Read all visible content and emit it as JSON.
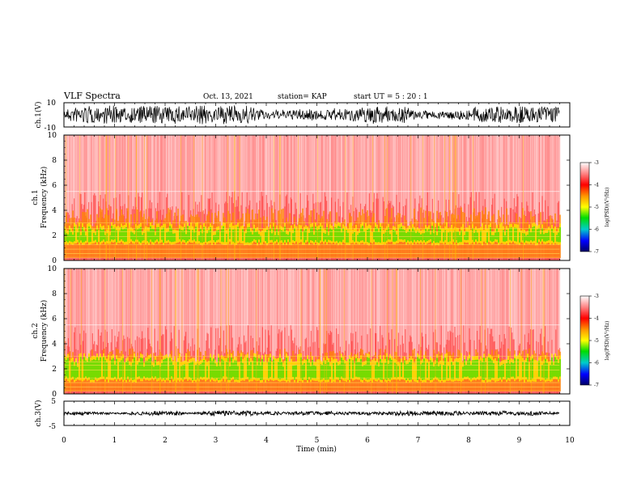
{
  "header": {
    "title": "VLF Spectra",
    "date": "Oct. 13, 2021",
    "station": "station= KAP",
    "start": "start  UT =  5 : 20 : 1"
  },
  "chart_data": [
    {
      "type": "line",
      "panel": "ch1-waveform",
      "ylabel": "ch.1(V)",
      "ylim": [
        -10,
        10
      ],
      "ytick_labels": [
        "10",
        "-10"
      ],
      "xlim": [
        0,
        10
      ],
      "data_until_min": 9.8
    },
    {
      "type": "heatmap",
      "panel": "ch1-spectrogram",
      "ylabel_top": "ch.1",
      "ylabel": "Frequency (kHz)",
      "ylim": [
        0,
        10
      ],
      "ytick_labels": [
        "0",
        "2",
        "4",
        "6",
        "8",
        "10"
      ],
      "colorbar": {
        "label": "log(PSD)(V²/Hz)",
        "range": [
          -7,
          -3
        ],
        "tick_labels": [
          "-3",
          "-4",
          "-5",
          "-6",
          "-7"
        ]
      },
      "data_until_min": 9.8
    },
    {
      "type": "heatmap",
      "panel": "ch2-spectrogram",
      "ylabel_top": "ch.2",
      "ylabel": "Frequency (kHz)",
      "ylim": [
        0,
        10
      ],
      "ytick_labels": [
        "0",
        "2",
        "4",
        "6",
        "8",
        "10"
      ],
      "colorbar": {
        "label": "log(PSD)(V²/Hz)",
        "range": [
          -7,
          -3
        ],
        "tick_labels": [
          "-3",
          "-4",
          "-5",
          "-6",
          "-7"
        ]
      },
      "data_until_min": 9.8
    },
    {
      "type": "line",
      "panel": "ch3-waveform",
      "ylabel": "ch.3(V)",
      "ylim": [
        -5,
        5
      ],
      "ytick_labels": [
        "5",
        "-5"
      ],
      "xlim": [
        0,
        10
      ],
      "xlabel": "Time (min)",
      "xtick_labels": [
        "0",
        "1",
        "2",
        "3",
        "4",
        "5",
        "6",
        "7",
        "8",
        "9",
        "10"
      ],
      "data_until_min": 9.8
    }
  ],
  "colors": {
    "low": "#ff2020",
    "mid_low": "#ff8800",
    "mid": "#ffee00",
    "mid_high": "#55dd00",
    "waveform": "#000000"
  }
}
